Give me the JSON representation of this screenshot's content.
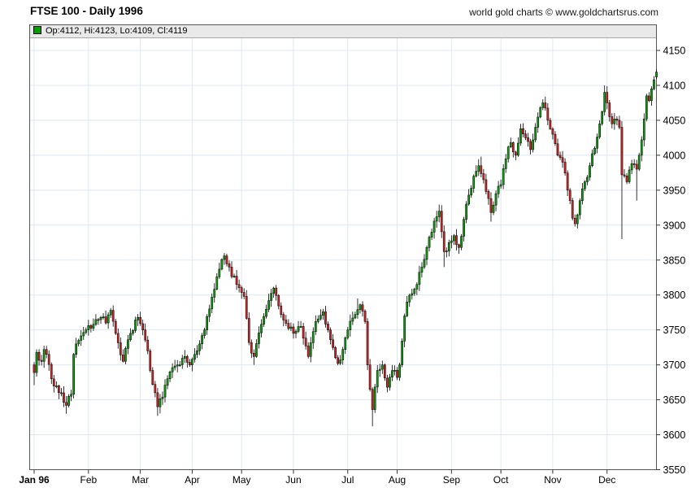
{
  "header": {
    "title": "FTSE 100 - Daily 1996",
    "watermark": "world gold charts © www.goldchartsrus.com"
  },
  "legend": {
    "swatch_color": "#00a000",
    "text": "Op:4112, Hi:4123, Lo:4109, Cl:4119"
  },
  "chart_data": {
    "type": "candlestick",
    "instrument": "FTSE 100",
    "period": "Daily 1996",
    "title": "FTSE 100 - Daily 1996",
    "ylim": [
      3550,
      4150
    ],
    "y_tick_step": 50,
    "y_ticks": [
      3550,
      3600,
      3650,
      3700,
      3750,
      3800,
      3850,
      3900,
      3950,
      4000,
      4050,
      4100,
      4150
    ],
    "grid": true,
    "legend_position": "top-inside",
    "x_axis_months": [
      {
        "label": "Jan 96",
        "day": 0,
        "bold": true
      },
      {
        "label": "Feb",
        "day": 22
      },
      {
        "label": "Mar",
        "day": 43
      },
      {
        "label": "Apr",
        "day": 64
      },
      {
        "label": "May",
        "day": 84
      },
      {
        "label": "Jun",
        "day": 105
      },
      {
        "label": "Jul",
        "day": 127
      },
      {
        "label": "Aug",
        "day": 147
      },
      {
        "label": "Sep",
        "day": 169
      },
      {
        "label": "Oct",
        "day": 189
      },
      {
        "label": "Nov",
        "day": 210
      },
      {
        "label": "Dec",
        "day": 232
      }
    ],
    "total_days": 253,
    "first_open": 3700,
    "last_candle": {
      "open": 4112,
      "high": 4123,
      "low": 4109,
      "close": 4119
    },
    "close_keypoints": [
      [
        0,
        3689
      ],
      [
        1,
        3718
      ],
      [
        3,
        3705
      ],
      [
        4,
        3722
      ],
      [
        5,
        3715
      ],
      [
        7,
        3680
      ],
      [
        9,
        3670
      ],
      [
        11,
        3660
      ],
      [
        13,
        3642
      ],
      [
        15,
        3658
      ],
      [
        16,
        3715
      ],
      [
        18,
        3735
      ],
      [
        21,
        3750
      ],
      [
        24,
        3758
      ],
      [
        27,
        3768
      ],
      [
        29,
        3760
      ],
      [
        31,
        3778
      ],
      [
        33,
        3745
      ],
      [
        36,
        3705
      ],
      [
        39,
        3745
      ],
      [
        42,
        3768
      ],
      [
        44,
        3750
      ],
      [
        46,
        3720
      ],
      [
        48,
        3672
      ],
      [
        50,
        3640
      ],
      [
        52,
        3654
      ],
      [
        55,
        3690
      ],
      [
        58,
        3700
      ],
      [
        61,
        3712
      ],
      [
        63,
        3700
      ],
      [
        65,
        3715
      ],
      [
        68,
        3742
      ],
      [
        71,
        3780
      ],
      [
        74,
        3826
      ],
      [
        77,
        3856
      ],
      [
        79,
        3840
      ],
      [
        82,
        3815
      ],
      [
        85,
        3798
      ],
      [
        87,
        3732
      ],
      [
        89,
        3712
      ],
      [
        92,
        3758
      ],
      [
        95,
        3792
      ],
      [
        97,
        3810
      ],
      [
        100,
        3772
      ],
      [
        103,
        3752
      ],
      [
        106,
        3748
      ],
      [
        108,
        3755
      ],
      [
        111,
        3712
      ],
      [
        114,
        3762
      ],
      [
        117,
        3776
      ],
      [
        120,
        3736
      ],
      [
        123,
        3702
      ],
      [
        125,
        3722
      ],
      [
        127,
        3750
      ],
      [
        130,
        3772
      ],
      [
        132,
        3786
      ],
      [
        134,
        3762
      ],
      [
        135,
        3700
      ],
      [
        136,
        3665
      ],
      [
        137,
        3636
      ],
      [
        139,
        3692
      ],
      [
        141,
        3700
      ],
      [
        143,
        3668
      ],
      [
        145,
        3692
      ],
      [
        147,
        3682
      ],
      [
        148,
        3700
      ],
      [
        149,
        3734
      ],
      [
        150,
        3770
      ],
      [
        151,
        3790
      ],
      [
        153,
        3802
      ],
      [
        155,
        3815
      ],
      [
        157,
        3840
      ],
      [
        159,
        3868
      ],
      [
        161,
        3890
      ],
      [
        163,
        3912
      ],
      [
        164,
        3920
      ],
      [
        166,
        3862
      ],
      [
        168,
        3875
      ],
      [
        170,
        3885
      ],
      [
        172,
        3868
      ],
      [
        175,
        3930
      ],
      [
        178,
        3970
      ],
      [
        180,
        3985
      ],
      [
        182,
        3965
      ],
      [
        184,
        3938
      ],
      [
        185,
        3918
      ],
      [
        187,
        3945
      ],
      [
        189,
        3958
      ],
      [
        191,
        3995
      ],
      [
        193,
        4018
      ],
      [
        195,
        4000
      ],
      [
        197,
        4038
      ],
      [
        199,
        4025
      ],
      [
        201,
        4008
      ],
      [
        203,
        4040
      ],
      [
        205,
        4068
      ],
      [
        206,
        4075
      ],
      [
        208,
        4050
      ],
      [
        210,
        4030
      ],
      [
        212,
        4000
      ],
      [
        214,
        3990
      ],
      [
        216,
        3950
      ],
      [
        218,
        3910
      ],
      [
        219,
        3902
      ],
      [
        221,
        3935
      ],
      [
        223,
        3962
      ],
      [
        225,
        3985
      ],
      [
        227,
        4010
      ],
      [
        229,
        4045
      ],
      [
        231,
        4090
      ],
      [
        232,
        4075
      ],
      [
        234,
        4045
      ],
      [
        236,
        4050
      ],
      [
        237,
        4040
      ],
      [
        238,
        3972
      ],
      [
        240,
        3962
      ],
      [
        242,
        3988
      ],
      [
        244,
        3980
      ],
      [
        245,
        4000
      ],
      [
        246,
        4022
      ],
      [
        247,
        4052
      ],
      [
        248,
        4085
      ],
      [
        249,
        4078
      ],
      [
        250,
        4095
      ],
      [
        251,
        4108
      ],
      [
        252,
        4119
      ]
    ],
    "wick_extremes": [
      {
        "day": 0,
        "low": 3671
      },
      {
        "day": 13,
        "low": 3630
      },
      {
        "day": 50,
        "low": 3627
      },
      {
        "day": 77,
        "high": 3860
      },
      {
        "day": 89,
        "low": 3700
      },
      {
        "day": 131,
        "high": 3795
      },
      {
        "day": 137,
        "low": 3612
      },
      {
        "day": 166,
        "low": 3840
      },
      {
        "day": 181,
        "high": 3998
      },
      {
        "day": 185,
        "low": 3905
      },
      {
        "day": 206,
        "high": 4080
      },
      {
        "day": 219,
        "low": 3898
      },
      {
        "day": 231,
        "high": 4100
      },
      {
        "day": 238,
        "low": 3880
      },
      {
        "day": 244,
        "low": 3935
      }
    ],
    "colors": {
      "up": "#0c9c0c",
      "down": "#cc2222",
      "body_outline": "#000000",
      "wick": "#000000",
      "grid": "#dce8f4",
      "frame": "#555555",
      "axis_text": "#000000",
      "legend_bg": "#e9e9e9"
    }
  }
}
